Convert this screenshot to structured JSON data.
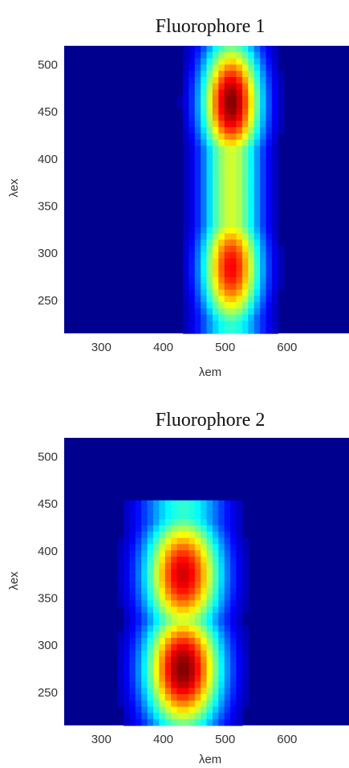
{
  "chart_data": [
    {
      "type": "heatmap",
      "title": "Fluorophore 1",
      "xlabel": "λem",
      "ylabel": "λex",
      "xlim": [
        240,
        700
      ],
      "ylim": [
        215,
        520
      ],
      "xticks": [
        300,
        400,
        500,
        600
      ],
      "yticks": [
        250,
        300,
        350,
        400,
        450,
        500
      ],
      "colormap": "jet",
      "background_color": "#00008f",
      "peaks": [
        {
          "ex": 460,
          "em": 510,
          "intensity": 1.0
        },
        {
          "ex": 285,
          "em": 510,
          "intensity": 0.88
        }
      ],
      "emission_bandwidth": 34,
      "excitation_support": [
        215,
        520
      ]
    },
    {
      "type": "heatmap",
      "title": "Fluorophore 2",
      "xlabel": "λem",
      "ylabel": "λex",
      "xlim": [
        240,
        700
      ],
      "ylim": [
        215,
        520
      ],
      "xticks": [
        300,
        400,
        500,
        600
      ],
      "yticks": [
        250,
        300,
        350,
        400,
        450,
        500
      ],
      "colormap": "jet",
      "background_color": "#00008f",
      "peaks": [
        {
          "ex": 375,
          "em": 432,
          "intensity": 0.92
        },
        {
          "ex": 275,
          "em": 432,
          "intensity": 1.0
        }
      ],
      "emission_bandwidth": 44,
      "excitation_support": [
        215,
        455
      ]
    }
  ]
}
